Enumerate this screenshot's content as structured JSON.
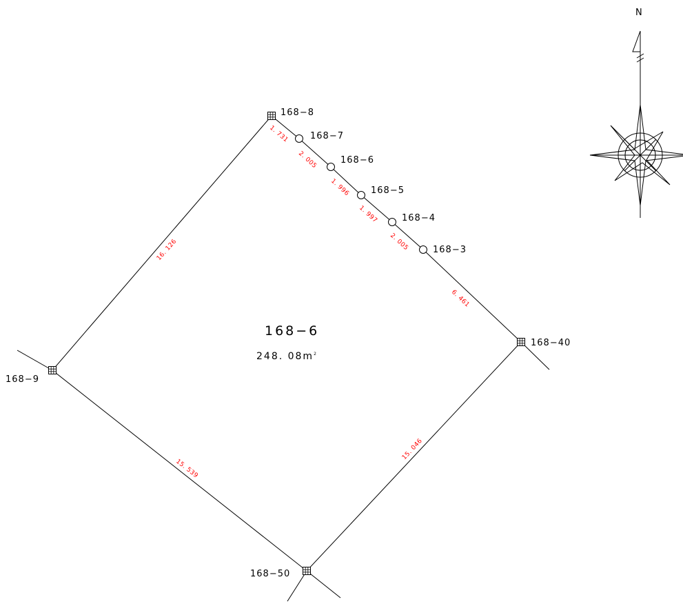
{
  "parcel": {
    "name": "168−6",
    "area": "248. 08m",
    "area_unit_sup": "2"
  },
  "north_label": "N",
  "points": [
    {
      "id": "p8",
      "label": "168−8",
      "marker": "boundary-stone"
    },
    {
      "id": "p7",
      "label": "168−7",
      "marker": "circle"
    },
    {
      "id": "p6",
      "label": "168−6",
      "marker": "circle"
    },
    {
      "id": "p5",
      "label": "168−5",
      "marker": "circle"
    },
    {
      "id": "p4",
      "label": "168−4",
      "marker": "circle"
    },
    {
      "id": "p3",
      "label": "168−3",
      "marker": "circle"
    },
    {
      "id": "p40",
      "label": "168−40",
      "marker": "boundary-stone"
    },
    {
      "id": "p50",
      "label": "168−50",
      "marker": "boundary-stone"
    },
    {
      "id": "p9",
      "label": "168−9",
      "marker": "boundary-stone"
    }
  ],
  "distances": [
    {
      "from": "p8",
      "to": "p7",
      "value": "1. 731"
    },
    {
      "from": "p7",
      "to": "p6",
      "value": "2. 005"
    },
    {
      "from": "p6",
      "to": "p5",
      "value": "1. 996"
    },
    {
      "from": "p5",
      "to": "p4",
      "value": "1. 997"
    },
    {
      "from": "p4",
      "to": "p3",
      "value": "2. 005"
    },
    {
      "from": "p3",
      "to": "p40",
      "value": "6. 461"
    },
    {
      "from": "p40",
      "to": "p50",
      "value": "15. 046"
    },
    {
      "from": "p50",
      "to": "p9",
      "value": "15. 539"
    },
    {
      "from": "p9",
      "to": "p8",
      "value": "16. 126"
    }
  ],
  "colors": {
    "line": "#000000",
    "distance_text": "#ff0000",
    "background": "#ffffff"
  },
  "icons": [
    "boundary-stone-icon",
    "survey-point-icon",
    "compass-rose-icon"
  ]
}
